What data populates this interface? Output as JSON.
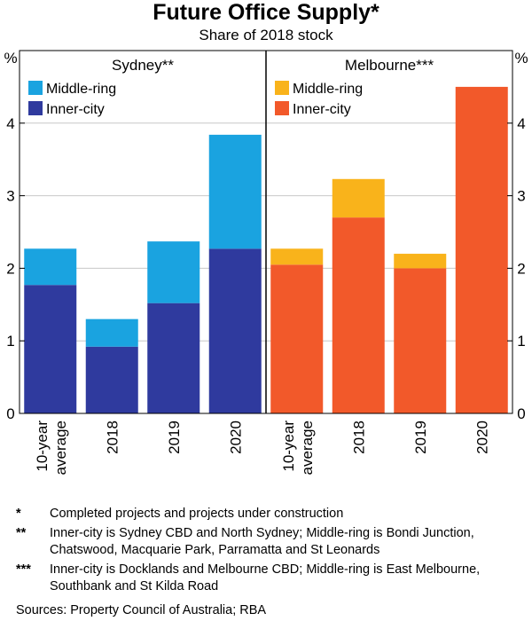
{
  "title": "Future Office Supply*",
  "subtitle": "Share of 2018 stock",
  "chart_data": {
    "type": "bar",
    "stacked": true,
    "title": "Future Office Supply*",
    "subtitle": "Share of 2018 stock",
    "ylabel": "%",
    "ylim": [
      0,
      5
    ],
    "yticks": [
      0,
      1,
      2,
      3,
      4
    ],
    "categories": [
      "10-year average",
      "2018",
      "2019",
      "2020"
    ],
    "category_lines": [
      [
        "10-year",
        "average"
      ],
      [
        "2018"
      ],
      [
        "2019"
      ],
      [
        "2020"
      ]
    ],
    "panels": [
      {
        "name": "Sydney**",
        "series": [
          {
            "name": "Inner-city",
            "color": "#2f3a9e",
            "values": [
              1.77,
              0.92,
              1.52,
              2.27
            ]
          },
          {
            "name": "Middle-ring",
            "color": "#1aa3e0",
            "values": [
              0.5,
              0.38,
              0.85,
              1.57
            ]
          }
        ]
      },
      {
        "name": "Melbourne***",
        "series": [
          {
            "name": "Inner-city",
            "color": "#f2592a",
            "values": [
              2.05,
              2.7,
              2.0,
              4.5
            ]
          },
          {
            "name": "Middle-ring",
            "color": "#f9b31b",
            "values": [
              0.22,
              0.53,
              0.2,
              0.0
            ]
          }
        ]
      }
    ],
    "legend": [
      "Middle-ring",
      "Inner-city"
    ]
  },
  "notes": [
    {
      "mark": "*",
      "text": "Completed projects and projects under construction"
    },
    {
      "mark": "**",
      "text": "Inner-city is Sydney CBD and North Sydney; Middle-ring is Bondi Junction, Chatswood, Macquarie Park, Parramatta and St Leonards"
    },
    {
      "mark": "***",
      "text": "Inner-city is Docklands and Melbourne CBD; Middle-ring is East Melbourne, Southbank and St Kilda Road"
    }
  ],
  "sources": "Sources: Property Council of Australia; RBA"
}
